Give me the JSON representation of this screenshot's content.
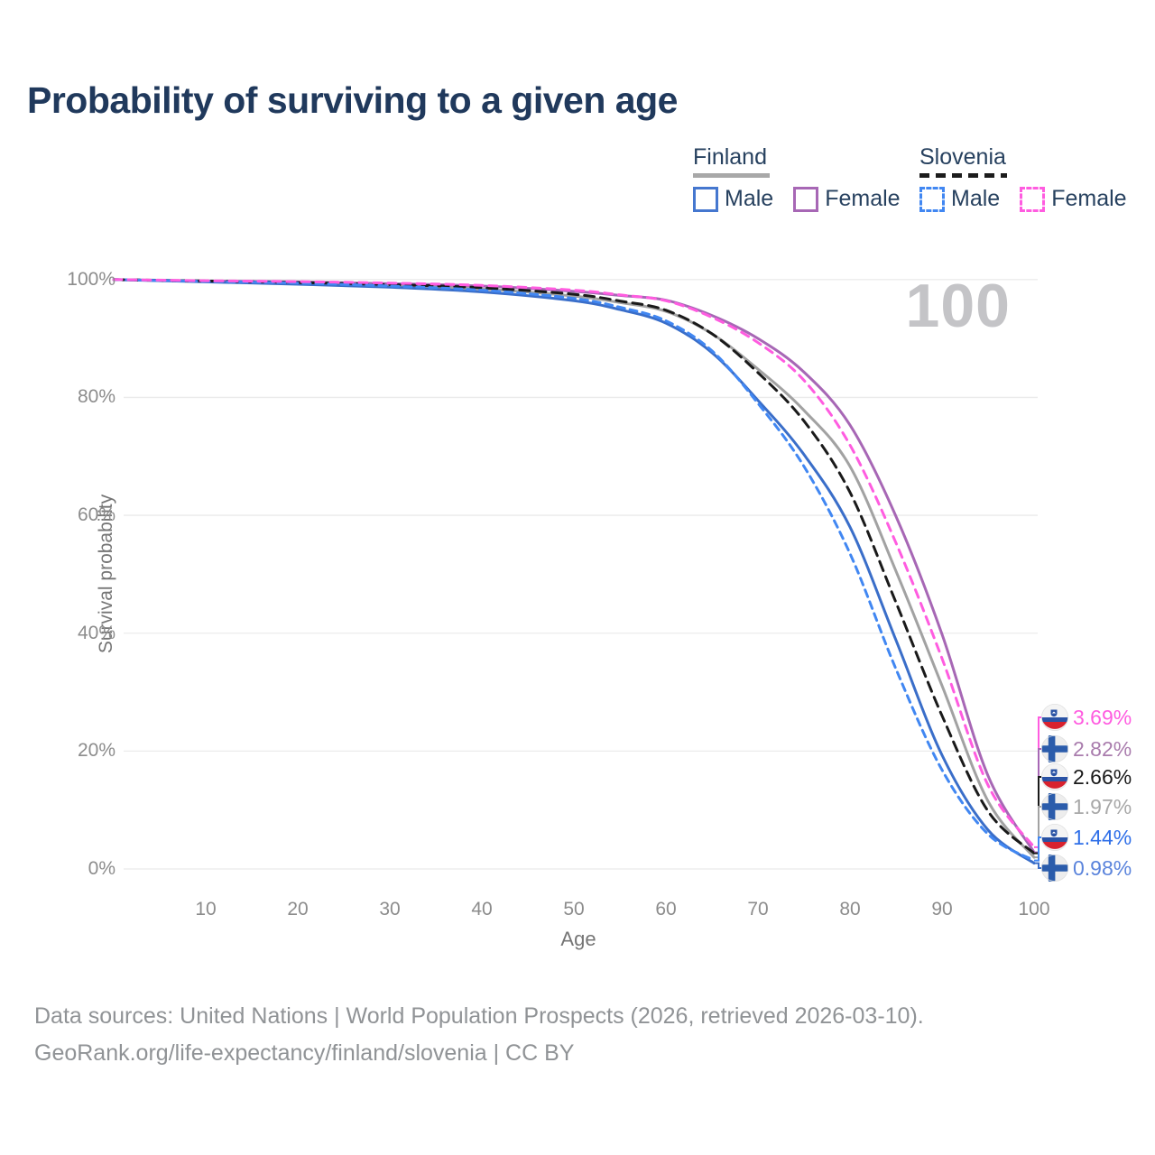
{
  "title": "Probability of surviving to a given age",
  "watermark": "100",
  "legend": {
    "groups": [
      {
        "name": "Finland",
        "line_style": "solid",
        "underline_color": "#a8a8a8",
        "items": [
          {
            "label": "Male",
            "color": "#4577cf"
          },
          {
            "label": "Female",
            "color": "#a767b5"
          }
        ]
      },
      {
        "name": "Slovenia",
        "line_style": "dashed",
        "underline_color": "#1c1c1c",
        "items": [
          {
            "label": "Male",
            "color": "#4187f2"
          },
          {
            "label": "Female",
            "color": "#ff5ce0"
          }
        ]
      }
    ]
  },
  "chart_data": {
    "type": "line",
    "title": "Probability of surviving to a given age",
    "xlabel": "Age",
    "ylabel": "Survival probability",
    "xlim": [
      0,
      100
    ],
    "ylim": [
      0,
      100
    ],
    "grid": "horizontal",
    "x_ticks": [
      10,
      20,
      30,
      40,
      50,
      60,
      70,
      80,
      90,
      100
    ],
    "y_ticks": [
      0,
      20,
      40,
      60,
      80,
      100
    ],
    "y_tick_labels": [
      "0%",
      "20%",
      "40%",
      "60%",
      "80%",
      "100%"
    ],
    "x": [
      0,
      10,
      20,
      30,
      40,
      50,
      55,
      60,
      65,
      70,
      75,
      80,
      85,
      90,
      95,
      100
    ],
    "series": [
      {
        "name": "Slovenia Female",
        "country": "Slovenia",
        "sex": "Female",
        "flag": "slovenia",
        "color": "#ff5ce0",
        "dash": "dashed",
        "dasharray": "9 7",
        "end_label": "3.69%",
        "end_label_color": "#ff5ce0",
        "values": [
          100,
          99.8,
          99.65,
          99.4,
          99.0,
          98.2,
          97.4,
          96.4,
          93.6,
          89.3,
          82.9,
          71.9,
          55.3,
          35.7,
          14.2,
          3.69
        ]
      },
      {
        "name": "Finland Female",
        "country": "Finland",
        "sex": "Female",
        "flag": "finland",
        "color": "#a767b5",
        "dash": "solid",
        "dasharray": "",
        "end_label": "2.82%",
        "end_label_color": "#a97cad",
        "values": [
          100,
          99.75,
          99.6,
          99.3,
          98.9,
          98.0,
          97.3,
          96.5,
          93.9,
          90.0,
          84.3,
          75.3,
          59.8,
          39.8,
          15.8,
          2.82
        ]
      },
      {
        "name": "Slovenia (both sexes)",
        "country": "Slovenia",
        "sex": "Total",
        "flag": "slovenia",
        "color": "#1a1a1a",
        "dash": "dashed",
        "dasharray": "11 7",
        "end_label": "2.66%",
        "end_label_color": "#1a1a1a",
        "values": [
          100,
          99.75,
          99.5,
          99.15,
          98.6,
          97.5,
          96.35,
          94.8,
          90.8,
          84.2,
          76.0,
          63.9,
          45.2,
          26.0,
          9.8,
          2.66
        ]
      },
      {
        "name": "Finland (both sexes)",
        "country": "Finland",
        "sex": "Total",
        "flag": "finland",
        "color": "#a2a2a2",
        "dash": "solid",
        "dasharray": "",
        "end_label": "1.97%",
        "end_label_color": "#a8a8a8",
        "values": [
          100,
          99.68,
          99.4,
          99.0,
          98.4,
          97.2,
          96.1,
          94.6,
          90.8,
          84.8,
          77.8,
          68.3,
          50.5,
          31.1,
          11.5,
          1.97
        ]
      },
      {
        "name": "Slovenia Male",
        "country": "Slovenia",
        "sex": "Male",
        "flag": "slovenia",
        "color": "#4187f2",
        "dash": "dashed",
        "dasharray": "8 6",
        "end_label": "1.44%",
        "end_label_color": "#2f6fe8",
        "values": [
          100,
          99.7,
          99.4,
          98.9,
          98.2,
          96.8,
          95.3,
          93.0,
          87.9,
          79.0,
          68.3,
          53.5,
          33.9,
          16.8,
          5.9,
          1.44
        ]
      },
      {
        "name": "Finland Male",
        "country": "Finland",
        "sex": "Male",
        "flag": "finland",
        "color": "#3a6ec9",
        "dash": "solid",
        "dasharray": "",
        "end_label": "0.98%",
        "end_label_color": "#5b84dc",
        "values": [
          100,
          99.6,
          99.2,
          98.7,
          97.9,
          96.4,
          94.9,
          92.6,
          87.6,
          79.5,
          70.3,
          58.0,
          38.8,
          19.3,
          6.6,
          0.98
        ]
      }
    ]
  },
  "footer": {
    "line1": "Data sources: United Nations | World Population Prospects (2026, retrieved 2026-03-10).",
    "line2": "GeoRank.org/life-expectancy/finland/slovenia | CC BY"
  },
  "colors": {
    "title": "#20395c",
    "grid": "#ebebeb",
    "axis_text": "#8c8c8c",
    "watermark": "#c4c4c7",
    "finland_flag_blue": "#2b5cab",
    "slovenia_flag_blue": "#2a53a5",
    "slovenia_flag_red": "#d8222e"
  }
}
